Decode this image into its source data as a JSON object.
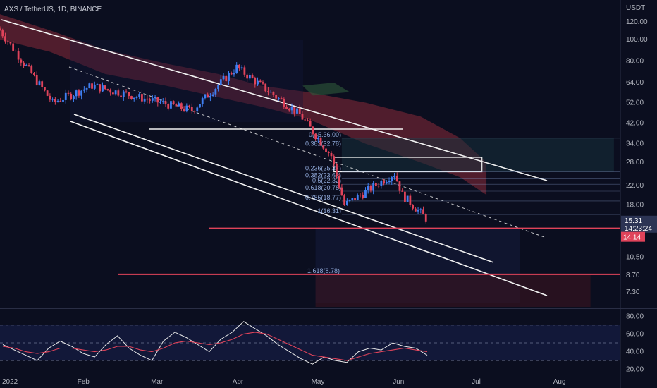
{
  "header": {
    "title": "AXS / TetherUS, 1D, BINANCE",
    "currency": "USDT"
  },
  "colors": {
    "background": "#0b0e1f",
    "up": "#3f7ff2",
    "down": "#e0435a",
    "channel": "#f2f2f2",
    "support": "#e0435a",
    "rsi": "#e8e8e8",
    "rsi_ma": "#e0435a",
    "fib": "#8fa8d8",
    "cloud_bear": "#8a2a38",
    "cloud_bull": "#2e5a3a"
  },
  "chart_data": [
    {
      "type": "candlestick",
      "ylabel": "USDT",
      "scale": "log",
      "ylim": [
        6.5,
        140
      ],
      "price_ticks": [
        "120.00",
        "100.00",
        "80.00",
        "64.00",
        "52.00",
        "42.00",
        "34.00",
        "28.00",
        "22.00",
        "18.00",
        "10.50",
        "8.70",
        "7.30"
      ],
      "time_labels": [
        "2022",
        "Feb",
        "Mar",
        "Apr",
        "May",
        "Jun",
        "Jul",
        "Aug"
      ],
      "current_price": "15.31",
      "countdown": "14:23:24",
      "level_tag": "14.14",
      "fib_levels": [
        {
          "label": "0(45.36.00)",
          "value": 36.0
        },
        {
          "label": "0.382(32.78)",
          "value": 32.78
        },
        {
          "label": "0.236(25.37)",
          "value": 25.37
        },
        {
          "label": "0.382(23.62)",
          "value": 23.62
        },
        {
          "label": "0.5(22.32)",
          "value": 22.32
        },
        {
          "label": "0.618(20.78)",
          "value": 20.78
        },
        {
          "label": "0.786(18.77)",
          "value": 18.77
        },
        {
          "label": "1(16.31)",
          "value": 16.31
        },
        {
          "label": "1.618(8.78)",
          "value": 8.78
        }
      ],
      "horizontal_levels": [
        42.5,
        14.14,
        8.78
      ],
      "key_closes": [
        {
          "date": "2022-01-01",
          "close": 110
        },
        {
          "date": "2022-01-21",
          "close": 52
        },
        {
          "date": "2022-02-05",
          "close": 62
        },
        {
          "date": "2022-03-15",
          "close": 48
        },
        {
          "date": "2022-04-01",
          "close": 75
        },
        {
          "date": "2022-04-08",
          "close": 65
        },
        {
          "date": "2022-04-25",
          "close": 46
        },
        {
          "date": "2022-05-07",
          "close": 30
        },
        {
          "date": "2022-05-12",
          "close": 18
        },
        {
          "date": "2022-05-31",
          "close": 25
        },
        {
          "date": "2022-06-03",
          "close": 20
        },
        {
          "date": "2022-06-13",
          "close": 15.3
        }
      ]
    },
    {
      "type": "line",
      "title": "",
      "ylim": [
        15,
        85
      ],
      "ticks": [
        "80.00",
        "60.00",
        "40.00",
        "20.00"
      ],
      "levels": [
        70,
        50,
        30
      ],
      "series": [
        {
          "values": [
            48,
            42,
            36,
            30,
            44,
            52,
            46,
            38,
            34,
            48,
            58,
            44,
            36,
            30,
            52,
            62,
            56,
            48,
            40,
            54,
            62,
            74,
            66,
            58,
            48,
            40,
            32,
            26,
            34,
            30,
            28,
            40,
            44,
            42,
            50,
            46,
            44,
            36
          ]
        },
        {
          "values": [
            46,
            44,
            40,
            38,
            40,
            44,
            44,
            42,
            40,
            42,
            46,
            46,
            42,
            40,
            44,
            50,
            52,
            50,
            48,
            50,
            54,
            60,
            62,
            60,
            54,
            48,
            42,
            36,
            34,
            32,
            30,
            34,
            38,
            40,
            42,
            44,
            42,
            40
          ]
        }
      ]
    }
  ]
}
